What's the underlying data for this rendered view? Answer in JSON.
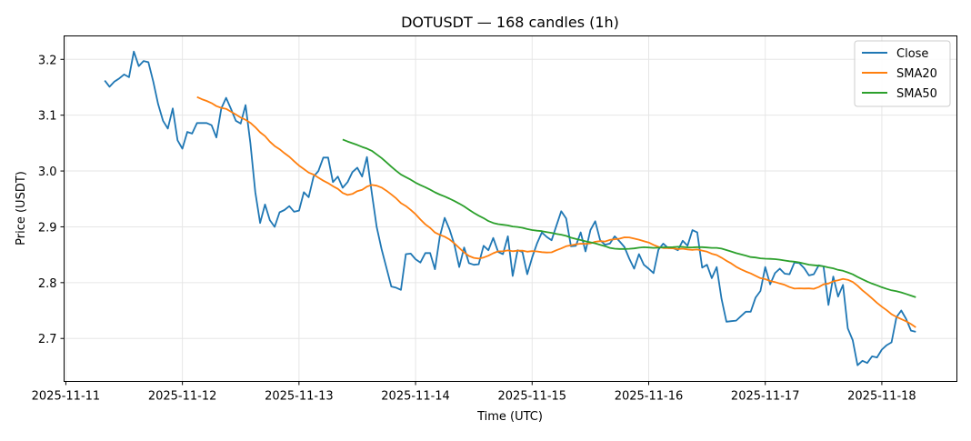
{
  "chart_data": {
    "type": "line",
    "title": "DOTUSDT — 168 candles (1h)",
    "xlabel": "Time (UTC)",
    "ylabel": "Price (USDT)",
    "start": "2025-11-11T08:00:00Z",
    "interval_hours": 1,
    "xlim_days_from_2025_11_11": [
      -0.015,
      7.644
    ],
    "ylim": [
      2.623,
      3.242
    ],
    "grid": true,
    "legend_position": "top-right",
    "x_ticks": [
      "2025-11-11",
      "2025-11-12",
      "2025-11-13",
      "2025-11-14",
      "2025-11-15",
      "2025-11-16",
      "2025-11-17",
      "2025-11-18"
    ],
    "y_ticks": [
      "2.7",
      "2.8",
      "2.9",
      "3.0",
      "3.1",
      "3.2"
    ],
    "series": [
      {
        "name": "Close",
        "color": "#1f77b4",
        "values": [
          3.162,
          3.151,
          3.16,
          3.166,
          3.173,
          3.168,
          3.214,
          3.188,
          3.197,
          3.195,
          3.16,
          3.12,
          3.09,
          3.076,
          3.112,
          3.055,
          3.04,
          3.07,
          3.067,
          3.086,
          3.086,
          3.086,
          3.082,
          3.06,
          3.112,
          3.131,
          3.111,
          3.09,
          3.085,
          3.118,
          3.05,
          2.962,
          2.907,
          2.94,
          2.912,
          2.9,
          2.926,
          2.93,
          2.937,
          2.927,
          2.929,
          2.962,
          2.953,
          2.99,
          3.0,
          3.024,
          3.024,
          2.98,
          2.99,
          2.97,
          2.98,
          2.998,
          3.006,
          2.99,
          3.025,
          2.96,
          2.9,
          2.86,
          2.827,
          2.793,
          2.791,
          2.787,
          2.851,
          2.852,
          2.842,
          2.836,
          2.853,
          2.853,
          2.824,
          2.883,
          2.916,
          2.895,
          2.868,
          2.828,
          2.863,
          2.835,
          2.832,
          2.833,
          2.866,
          2.858,
          2.88,
          2.855,
          2.851,
          2.883,
          2.812,
          2.858,
          2.855,
          2.815,
          2.845,
          2.87,
          2.89,
          2.882,
          2.876,
          2.902,
          2.928,
          2.915,
          2.865,
          2.866,
          2.89,
          2.856,
          2.894,
          2.91,
          2.876,
          2.868,
          2.87,
          2.883,
          2.874,
          2.864,
          2.843,
          2.825,
          2.851,
          2.832,
          2.825,
          2.817,
          2.859,
          2.87,
          2.862,
          2.862,
          2.858,
          2.875,
          2.866,
          2.894,
          2.89,
          2.827,
          2.832,
          2.808,
          2.828,
          2.771,
          2.73,
          2.731,
          2.732,
          2.74,
          2.748,
          2.748,
          2.773,
          2.785,
          2.828,
          2.797,
          2.817,
          2.825,
          2.816,
          2.815,
          2.836,
          2.835,
          2.826,
          2.813,
          2.815,
          2.831,
          2.829,
          2.76,
          2.811,
          2.775,
          2.796,
          2.718,
          2.697,
          2.652,
          2.66,
          2.656,
          2.668,
          2.666,
          2.68,
          2.688,
          2.693,
          2.738,
          2.75,
          2.735,
          2.714,
          2.712
        ]
      },
      {
        "name": "SMA20",
        "color": "#ff7f0e",
        "window": 20
      },
      {
        "name": "SMA50",
        "color": "#2ca02c",
        "window": 50
      }
    ]
  }
}
